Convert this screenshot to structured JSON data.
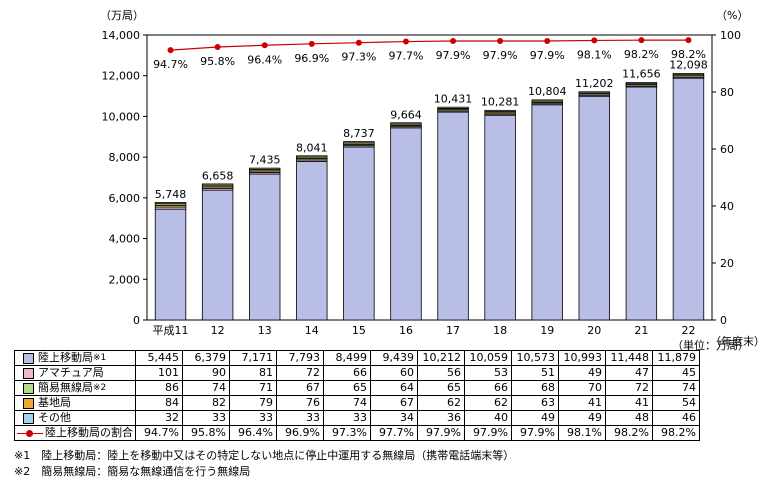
{
  "chart_data": {
    "type": "bar",
    "y_left_unit": "（万局）",
    "y_right_unit": "（%）",
    "x_unit": "（年度末）",
    "table_unit": "（単位：万局）",
    "ylim_left": [
      0,
      14000
    ],
    "ylim_right": [
      0,
      100
    ],
    "y_left_ticks": [
      "0",
      "2,000",
      "4,000",
      "6,000",
      "8,000",
      "10,000",
      "12,000",
      "14,000"
    ],
    "y_right_ticks": [
      "0",
      "20",
      "40",
      "60",
      "80",
      "100"
    ],
    "categories": [
      "平成11",
      "12",
      "13",
      "14",
      "15",
      "16",
      "17",
      "18",
      "19",
      "20",
      "21",
      "22"
    ],
    "totals": [
      "5,748",
      "6,658",
      "7,435",
      "8,041",
      "8,737",
      "9,664",
      "10,431",
      "10,281",
      "10,804",
      "11,202",
      "11,656",
      "12,098"
    ],
    "series": [
      {
        "name": "陸上移動局",
        "note": "※1",
        "color": "#b8bee6",
        "values": [
          5445,
          6379,
          7171,
          7793,
          8499,
          9439,
          10212,
          10059,
          10573,
          10993,
          11448,
          11879
        ],
        "labels": [
          "5,445",
          "6,379",
          "7,171",
          "7,793",
          "8,499",
          "9,439",
          "10,212",
          "10,059",
          "10,573",
          "10,993",
          "11,448",
          "11,879"
        ]
      },
      {
        "name": "アマチュア局",
        "note": "",
        "color": "#f2b8cc",
        "values": [
          101,
          90,
          81,
          72,
          66,
          60,
          56,
          53,
          51,
          49,
          47,
          45
        ],
        "labels": [
          "101",
          "90",
          "81",
          "72",
          "66",
          "60",
          "56",
          "53",
          "51",
          "49",
          "47",
          "45"
        ]
      },
      {
        "name": "簡易無線局",
        "note": "※2",
        "color": "#b5d98c",
        "values": [
          86,
          74,
          71,
          67,
          65,
          64,
          65,
          66,
          68,
          70,
          72,
          74
        ],
        "labels": [
          "86",
          "74",
          "71",
          "67",
          "65",
          "64",
          "65",
          "66",
          "68",
          "70",
          "72",
          "74"
        ]
      },
      {
        "name": "基地局",
        "note": "",
        "color": "#f0a830",
        "values": [
          84,
          82,
          79,
          76,
          74,
          67,
          62,
          62,
          63,
          41,
          41,
          54
        ],
        "labels": [
          "84",
          "82",
          "79",
          "76",
          "74",
          "67",
          "62",
          "62",
          "63",
          "41",
          "41",
          "54"
        ]
      },
      {
        "name": "その他",
        "note": "",
        "color": "#9fd3f0",
        "values": [
          32,
          33,
          33,
          33,
          33,
          34,
          36,
          40,
          49,
          49,
          48,
          46
        ],
        "labels": [
          "32",
          "33",
          "33",
          "33",
          "33",
          "34",
          "36",
          "40",
          "49",
          "49",
          "48",
          "46"
        ]
      }
    ],
    "ratio_series": {
      "name": "陸上移動局の割合",
      "color": "#cc0000",
      "values": [
        94.7,
        95.8,
        96.4,
        96.9,
        97.3,
        97.7,
        97.9,
        97.9,
        97.9,
        98.1,
        98.2,
        98.2
      ],
      "labels": [
        "94.7%",
        "95.8%",
        "96.4%",
        "96.9%",
        "97.3%",
        "97.7%",
        "97.9%",
        "97.9%",
        "97.9%",
        "98.1%",
        "98.2%",
        "98.2%"
      ]
    }
  },
  "footnotes": [
    "※1　陸上移動局：陸上を移動中又はその特定しない地点に停止中運用する無線局（携帯電話端末等）",
    "※2　簡易無線局：簡易な無線通信を行う無線局"
  ]
}
